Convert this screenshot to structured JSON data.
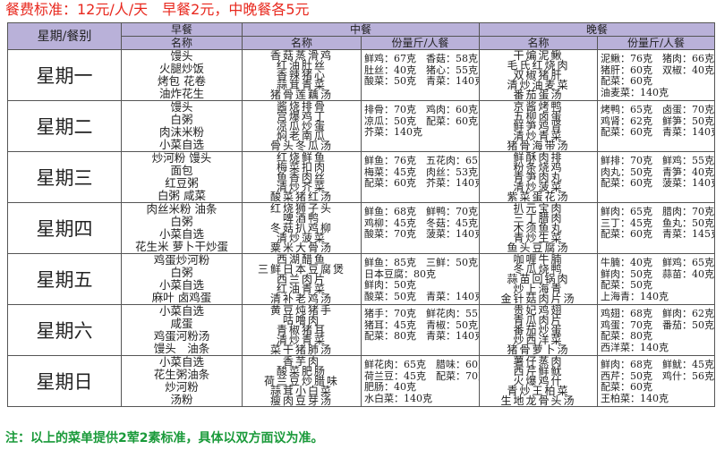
{
  "title": "餐费标准：12元/人/天　早餐2元，中晚餐各5元",
  "footer": "注：以上的菜单提供2荤2素标准，具体以双方面议为准。",
  "colors": {
    "header_bg": "#b9b1d9",
    "title": "#e8281e",
    "footer": "#1a9a3a"
  },
  "header": {
    "corner": "星期/餐别",
    "breakfast": "早餐",
    "lunch": "中餐",
    "dinner": "晚餐",
    "name": "名称",
    "qty": "份量斤/人餐"
  },
  "days": [
    {
      "day": "星期一",
      "breakfast": [
        "馒头",
        "火腿炒饭",
        "烤包 花卷",
        "油炸花生"
      ],
      "lunch": [
        "香菇蒸滑鸡",
        "红油肚丝",
        "香辣猪心",
        "蒜茸青菜",
        "猪骨莲藕汤"
      ],
      "lunch_qty": [
        "鲜鸡：67克　香菇：58克",
        "肚丝：40克　猪心：55克",
        "酸菜：50克　青菜：140克"
      ],
      "dinner": [
        "干煸泥鳅",
        "毛氏红烧肉",
        "双椒猪肝",
        "清炒油麦菜",
        "番茄蛋汤"
      ],
      "dinner_qty": [
        "泥鳅：76克　猪肉：66克",
        "猪肝：60克　双椒：40克",
        "配菜：60克",
        "油麦菜：140克"
      ]
    },
    {
      "day": "星期二",
      "breakfast": [
        "馒头",
        "白粥",
        "肉沫米粉",
        "小菜自选"
      ],
      "lunch": [
        "酱烧排骨",
        "宫爆鸡丁",
        "凉瓜炒蛋",
        "焖老南瓜",
        "骨头冬瓜汤"
      ],
      "lunch_qty": [
        "排骨：70克　鸡肉：60克",
        "凉瓜：50克　配菜：60克",
        "芥菜：140克"
      ],
      "dinner": [
        "京酱烤鸭",
        "五柳卤蛋",
        "鲜笋鸡肾",
        "清炒青菜",
        "猪骨海带汤"
      ],
      "dinner_qty": [
        "烤鸭：65克　卤蛋：70克",
        "鸡肾：62克　鲜笋：50克",
        "配菜：60克　青菜：140克"
      ]
    },
    {
      "day": "星期三",
      "breakfast": [
        "炒河粉 馒头",
        "面包",
        "红豆粥",
        "白粥 咸菜"
      ],
      "lunch": [
        "红烧鲜鱼",
        "梅菜扣肉",
        "鱼香肉丝",
        "清炒芥菜",
        "酸菜猪红汤"
      ],
      "lunch_qty": [
        "鲜鱼：76克　五花肉：65克",
        "梅菜：45克　肉丝：53克",
        "配菜：60克　芥菜：140克"
      ],
      "dinner": [
        "鲜酥肉排",
        "粉条烧鸡",
        "青笋肉丸",
        "清炒菠菜",
        "紫菜蛋花汤"
      ],
      "dinner_qty": [
        "鲜排：70克　鲜鸡：55克",
        "肉丸：50克　青笋：40克",
        "配菜：60克　菠菜：140克"
      ]
    },
    {
      "day": "星期四",
      "breakfast": [
        "肉丝米粉 油条",
        "白粥",
        "小菜自选",
        "花生米 萝卜干炒蛋"
      ],
      "lunch": [
        "红烧狮子头",
        "啤酒鸭",
        "冬菇扒鸡柳",
        "清炒菠菜",
        "粟米大骨汤"
      ],
      "lunch_qty": [
        "鲜鱼：68克　鲜鸭：70克",
        "鸡柳：45克　冬菇：45克",
        "酸菜：70克　菠菜：140克"
      ],
      "dinner": [
        "扒元宝肉",
        "三丁腊肉",
        "木须鱼丸",
        "青炒生菜",
        "鱼头豆腐汤"
      ],
      "dinner_qty": [
        "鲜肉：65克　腊肉：70克",
        "三丁：45克　鱼丸：50克",
        "配菜：60克　青菜：145克"
      ]
    },
    {
      "day": "星期五",
      "breakfast": [
        "鸡蛋炒河粉",
        "白粥",
        "小菜自选",
        "麻叶 卤鸡蛋"
      ],
      "lunch": [
        "西湖醋鱼",
        "三鲜日本豆腐煲",
        "西兰肉片",
        "红油青菜",
        "清补老鸡汤"
      ],
      "lunch_qty": [
        "鲜鱼：85克　三鲜：50克",
        "日本豆腐：80克",
        "鲜肉：50克",
        "酸菜：50克　青菜：140克"
      ],
      "dinner": [
        "咖喱牛腩",
        "冬瓜烧鸭",
        "蒜苗回锅肉",
        "炒上海青",
        "金针菇肉片汤"
      ],
      "dinner_qty": [
        "牛腩：40克　鲜鸡：65克",
        "鲜肉：50克　蒜苗：40克",
        "配菜：50克",
        "上海青：140克"
      ]
    },
    {
      "day": "星期六",
      "breakfast": [
        "小菜自选",
        "咸蛋",
        "鸡蛋河粉汤",
        "馒头　油条"
      ],
      "lunch": [
        "黄豆炖猪手",
        "咕噜肉",
        "青椒猪耳",
        "清炒青菜",
        "菜干猪肺汤"
      ],
      "lunch_qty": [
        "猪手：70克　鲜花肉：55克",
        "猪耳：45克　青椒：50克",
        "配菜：80克　青菜：140克"
      ],
      "dinner": [
        "贵妃鸡翅",
        "青瓜肉片",
        "番茄炒蛋",
        "炒西洋菜",
        "猪骨萝卜汤"
      ],
      "dinner_qty": [
        "鸡翅：68克　鲜肉：62克",
        "鸡蛋：70克　番茄：50克",
        "配菜：80克",
        "西洋菜：140克"
      ]
    },
    {
      "day": "星期日",
      "breakfast": [
        "小菜自选",
        "花生粥油条",
        "炒河粉",
        "汤粉"
      ],
      "lunch": [
        "香芋肉",
        "酸菜肥肠",
        "荷兰豆炒腊味",
        "蒜茸小白菜",
        "瘦肉豆芽汤"
      ],
      "lunch_qty": [
        "鲜花肉：65克　腊味：60克",
        "荷兰豆：45克　配菜：70克",
        "肥肠：40克",
        "水白菜：140克"
      ],
      "dinner": [
        "薯仔蒸肉",
        "西芹鲜鱿",
        "火爆鸡什",
        "青炒王柏菜",
        "生地龙骨头汤"
      ],
      "dinner_qty": [
        "鲜肉：68克　鲜鱿：45克",
        "西芹：50克　鸡什：56克",
        "配菜：60克",
        "王柏菜：140克"
      ]
    }
  ]
}
